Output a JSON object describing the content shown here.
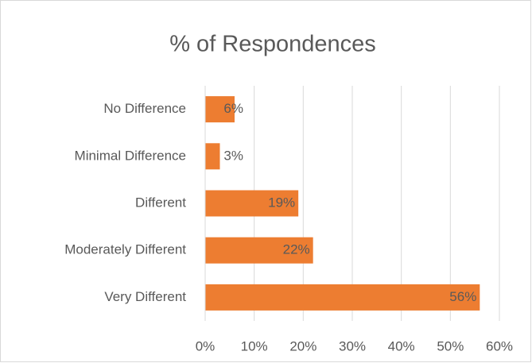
{
  "chart_data": {
    "type": "bar",
    "orientation": "horizontal",
    "title": "% of Respondences",
    "categories": [
      "No Difference",
      "Minimal Difference",
      "Different",
      "Moderately Different",
      "Very Different"
    ],
    "values": [
      6,
      3,
      19,
      22,
      56
    ],
    "value_labels": [
      "6%",
      "3%",
      "19%",
      "22%",
      "56%"
    ],
    "color": "#ed7d31",
    "xlim": [
      0,
      60
    ],
    "xticks": [
      {
        "value": 0,
        "label": "0%"
      },
      {
        "value": 10,
        "label": "10%"
      },
      {
        "value": 20,
        "label": "20%"
      },
      {
        "value": 30,
        "label": "30%"
      },
      {
        "value": 40,
        "label": "40%"
      },
      {
        "value": 50,
        "label": "50%"
      },
      {
        "value": 60,
        "label": "60%"
      }
    ],
    "grid": true
  }
}
